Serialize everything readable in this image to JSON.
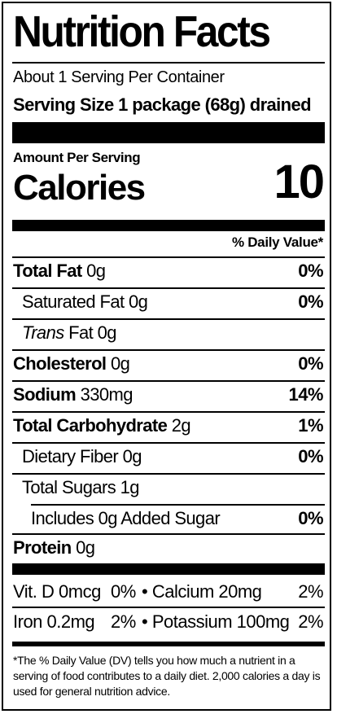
{
  "title": "Nutrition Facts",
  "servings_per_container": "About 1 Serving Per Container",
  "serving_size": "Serving Size 1 package (68g) drained",
  "amount_per_serving": "Amount Per Serving",
  "calories_label": "Calories",
  "calories_value": "10",
  "daily_value_header": "% Daily Value*",
  "nutrients": [
    {
      "name": "Total Fat",
      "amount": "0g",
      "dv": "0%"
    },
    {
      "name": "Saturated Fat",
      "amount": "0g",
      "dv": "0%"
    },
    {
      "name": "Trans",
      "suffix": "Fat 0g"
    },
    {
      "name": "Cholesterol",
      "amount": "0g",
      "dv": "0%"
    },
    {
      "name": "Sodium",
      "amount": "330mg",
      "dv": "14%"
    },
    {
      "name": "Total Carbohydrate",
      "amount": "2g",
      "dv": "1%"
    },
    {
      "name": "Dietary Fiber",
      "amount": "0g",
      "dv": "0%"
    },
    {
      "name": "Total Sugars",
      "amount": "1g"
    },
    {
      "name": "Includes 0g Added Sugar",
      "dv": "0%"
    },
    {
      "name": "Protein",
      "amount": "0g"
    }
  ],
  "vitamins": {
    "vit_d": "Vit. D 0mcg",
    "vit_d_dv": "0%",
    "calcium": "• Calcium 20mg",
    "calcium_dv": "2%",
    "iron": "Iron 0.2mg",
    "iron_dv": "2%",
    "potassium": "• Potassium 100mg",
    "potassium_dv": "2%"
  },
  "footnote": "*The % Daily Value (DV) tells you how much a nutrient in a serving of food contributes to a daily diet. 2,000 calories a day is used for general nutrition advice."
}
